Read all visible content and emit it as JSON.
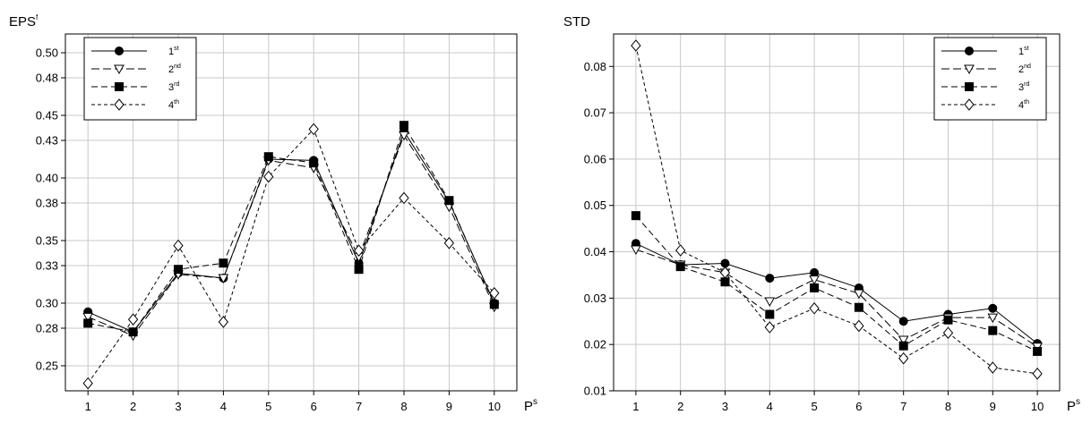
{
  "chart_data": [
    {
      "type": "line",
      "ylabel": "EPS",
      "ylabel_sup": "f",
      "xlabel": "P",
      "xlabel_sup": "s",
      "x": [
        1,
        2,
        3,
        4,
        5,
        6,
        7,
        8,
        9,
        10
      ],
      "xlim": [
        0.5,
        10.5
      ],
      "ylim": [
        0.23,
        0.515
      ],
      "yticks": [
        0.25,
        0.28,
        0.3,
        0.33,
        0.35,
        0.38,
        0.4,
        0.43,
        0.45,
        0.48,
        0.5
      ],
      "ytick_labels": [
        "0.25",
        "0.28",
        "0.30",
        "0.33",
        "0.35",
        "0.38",
        "0.40",
        "0.43",
        "0.45",
        "0.48",
        "0.50"
      ],
      "grid": true,
      "legend_position": "top-left",
      "series": [
        {
          "name": "1",
          "name_sup": "st",
          "marker": "circle",
          "dash": "solid",
          "values": [
            0.293,
            0.277,
            0.324,
            0.32,
            0.415,
            0.414,
            0.332,
            0.437,
            0.381,
            0.3
          ]
        },
        {
          "name": "2",
          "name_sup": "nd",
          "marker": "triangle-down",
          "dash": "long",
          "values": [
            0.289,
            0.274,
            0.323,
            0.32,
            0.414,
            0.408,
            0.337,
            0.434,
            0.377,
            0.297
          ]
        },
        {
          "name": "3",
          "name_sup": "rd",
          "marker": "square",
          "dash": "medium",
          "values": [
            0.284,
            0.277,
            0.327,
            0.332,
            0.417,
            0.412,
            0.327,
            0.442,
            0.382,
            0.299
          ]
        },
        {
          "name": "4",
          "name_sup": "th",
          "marker": "diamond",
          "dash": "short",
          "values": [
            0.236,
            0.287,
            0.346,
            0.285,
            0.401,
            0.439,
            0.342,
            0.384,
            0.348,
            0.308
          ]
        }
      ]
    },
    {
      "type": "line",
      "ylabel": "STD",
      "ylabel_sup": "",
      "xlabel": "P",
      "xlabel_sup": "s",
      "x": [
        1,
        2,
        3,
        4,
        5,
        6,
        7,
        8,
        9,
        10
      ],
      "xlim": [
        0.5,
        10.5
      ],
      "ylim": [
        0.01,
        0.087
      ],
      "yticks": [
        0.01,
        0.02,
        0.03,
        0.04,
        0.05,
        0.06,
        0.07,
        0.08
      ],
      "ytick_labels": [
        "0.01",
        "0.02",
        "0.03",
        "0.04",
        "0.05",
        "0.06",
        "0.07",
        "0.08"
      ],
      "grid": true,
      "legend_position": "top-right",
      "series": [
        {
          "name": "1",
          "name_sup": "st",
          "marker": "circle",
          "dash": "solid",
          "values": [
            0.0418,
            0.0372,
            0.0375,
            0.0343,
            0.0355,
            0.0322,
            0.025,
            0.0265,
            0.0278,
            0.0202
          ]
        },
        {
          "name": "2",
          "name_sup": "nd",
          "marker": "triangle-down",
          "dash": "long",
          "values": [
            0.0405,
            0.0372,
            0.0355,
            0.0293,
            0.034,
            0.031,
            0.021,
            0.0258,
            0.0258,
            0.0195
          ]
        },
        {
          "name": "3",
          "name_sup": "rd",
          "marker": "square",
          "dash": "medium",
          "values": [
            0.0478,
            0.0368,
            0.0335,
            0.0265,
            0.0322,
            0.028,
            0.0197,
            0.0253,
            0.023,
            0.0185
          ]
        },
        {
          "name": "4",
          "name_sup": "th",
          "marker": "diamond",
          "dash": "short",
          "values": [
            0.0845,
            0.0403,
            0.0355,
            0.0237,
            0.0278,
            0.024,
            0.017,
            0.0225,
            0.015,
            0.0137
          ]
        }
      ]
    }
  ]
}
